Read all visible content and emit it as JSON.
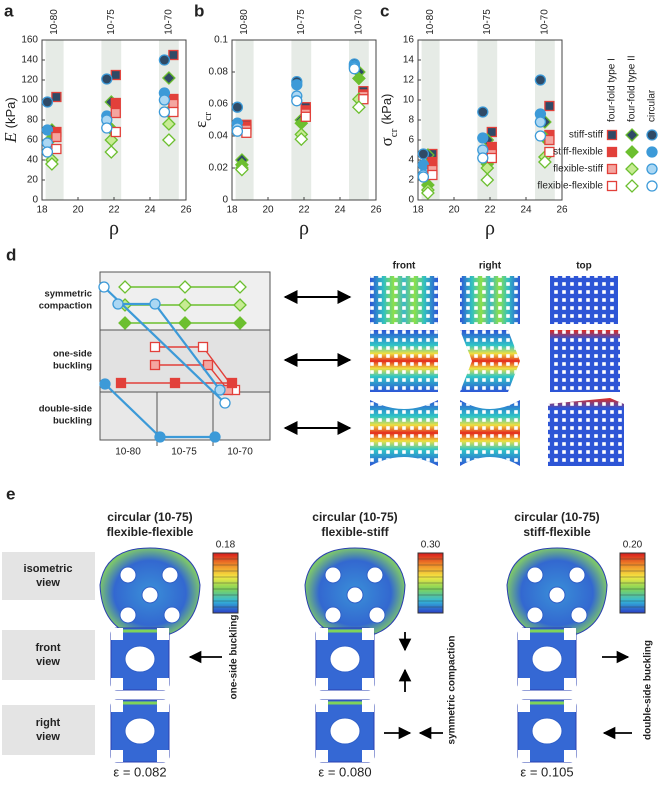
{
  "chart_data": [
    {
      "type": "scatter",
      "label": "a",
      "ylabel": "E",
      "ylabel_unit": "(kPa)",
      "xlabel": "ρ",
      "xlim": [
        18,
        26
      ],
      "xticks": [
        18,
        20,
        22,
        24,
        26
      ],
      "ylim": [
        0,
        160
      ],
      "yticks": [
        0,
        20,
        40,
        60,
        80,
        100,
        120,
        140,
        160
      ],
      "bands": [
        {
          "label": "10-80",
          "xrange": [
            18.2,
            19.2
          ]
        },
        {
          "label": "10-75",
          "xrange": [
            21.3,
            22.4
          ]
        },
        {
          "label": "10-70",
          "xrange": [
            24.5,
            25.6
          ]
        }
      ],
      "series": [
        {
          "x": [
            18.8,
            22.1,
            25.3
          ],
          "values": [
            103,
            125,
            145
          ]
        },
        {
          "x": [
            18.55,
            21.85,
            25.05
          ],
          "values": [
            70,
            98,
            122
          ]
        },
        {
          "x": [
            18.3,
            21.6,
            24.8
          ],
          "values": [
            98,
            121,
            140
          ]
        },
        {
          "x": [
            18.8,
            22.1,
            25.3
          ],
          "values": [
            68,
            97,
            101
          ]
        },
        {
          "x": [
            18.55,
            21.85,
            25.05
          ],
          "values": [
            62,
            71,
            88
          ]
        },
        {
          "x": [
            18.3,
            21.6,
            24.8
          ],
          "values": [
            70,
            84,
            107
          ]
        },
        {
          "x": [
            18.8,
            22.1,
            25.3
          ],
          "values": [
            63,
            87,
            96
          ]
        },
        {
          "x": [
            18.55,
            21.85,
            25.05
          ],
          "values": [
            40,
            60,
            76
          ]
        },
        {
          "x": [
            18.3,
            21.6,
            24.8
          ],
          "values": [
            57,
            80,
            100
          ]
        },
        {
          "x": [
            18.8,
            22.1,
            25.3
          ],
          "values": [
            51,
            68,
            88
          ]
        },
        {
          "x": [
            18.55,
            21.85,
            25.05
          ],
          "values": [
            36,
            48,
            60
          ]
        },
        {
          "x": [
            18.3,
            21.6,
            24.8
          ],
          "values": [
            48,
            72,
            88
          ]
        }
      ]
    },
    {
      "type": "scatter",
      "label": "b",
      "ylabel": "ε",
      "ylabel_sub": "cr",
      "xlabel": "ρ",
      "xlim": [
        18,
        26
      ],
      "xticks": [
        18,
        20,
        22,
        24,
        26
      ],
      "ylim": [
        0,
        0.1
      ],
      "yticks": [
        0,
        0.02,
        0.04,
        0.06,
        0.08,
        0.1
      ],
      "bands": [
        {
          "label": "10-80",
          "xrange": [
            18.2,
            19.2
          ]
        },
        {
          "label": "10-75",
          "xrange": [
            21.3,
            22.4
          ]
        },
        {
          "label": "10-70",
          "xrange": [
            24.5,
            25.6
          ]
        }
      ],
      "series": [
        {
          "x": [
            18.8,
            22.1,
            25.3
          ],
          "values": [
            0.047,
            0.058,
            0.068
          ]
        },
        {
          "x": [
            18.55,
            21.85,
            25.05
          ],
          "values": [
            0.025,
            0.05,
            0.08
          ]
        },
        {
          "x": [
            18.3,
            21.6,
            24.8
          ],
          "values": [
            0.058,
            0.074,
            0.085
          ]
        },
        {
          "x": [
            18.8,
            22.1,
            25.3
          ],
          "values": [
            0.046,
            0.056,
            0.066
          ]
        },
        {
          "x": [
            18.55,
            21.85,
            25.05
          ],
          "values": [
            0.022,
            0.048,
            0.076
          ]
        },
        {
          "x": [
            18.3,
            21.6,
            24.8
          ],
          "values": [
            0.048,
            0.072,
            0.084
          ]
        },
        {
          "x": [
            18.8,
            22.1,
            25.3
          ],
          "values": [
            0.044,
            0.054,
            0.065
          ]
        },
        {
          "x": [
            18.55,
            21.85,
            25.05
          ],
          "values": [
            0.02,
            0.041,
            0.063
          ]
        },
        {
          "x": [
            18.3,
            21.6,
            24.8
          ],
          "values": [
            0.045,
            0.065,
            0.083
          ]
        },
        {
          "x": [
            18.8,
            22.1,
            25.3
          ],
          "values": [
            0.042,
            0.052,
            0.063
          ]
        },
        {
          "x": [
            18.55,
            21.85,
            25.05
          ],
          "values": [
            0.019,
            0.038,
            0.058
          ]
        },
        {
          "x": [
            18.3,
            21.6,
            24.8
          ],
          "values": [
            0.043,
            0.062,
            0.082
          ]
        }
      ]
    },
    {
      "type": "scatter",
      "label": "c",
      "ylabel": "σ",
      "ylabel_sub": "cr",
      "ylabel_unit": "(kPa)",
      "xlabel": "ρ",
      "xlim": [
        18,
        26
      ],
      "xticks": [
        18,
        20,
        22,
        24,
        26
      ],
      "ylim": [
        0,
        16
      ],
      "yticks": [
        0,
        2,
        4,
        6,
        8,
        10,
        12,
        14,
        16
      ],
      "bands": [
        {
          "label": "10-80",
          "xrange": [
            18.2,
            19.2
          ]
        },
        {
          "label": "10-75",
          "xrange": [
            21.3,
            22.4
          ]
        },
        {
          "label": "10-70",
          "xrange": [
            24.5,
            25.6
          ]
        }
      ],
      "series": [
        {
          "x": [
            18.8,
            22.1,
            25.3
          ],
          "values": [
            4.6,
            6.8,
            9.4
          ]
        },
        {
          "x": [
            18.55,
            21.85,
            25.05
          ],
          "values": [
            4.5,
            6.0,
            7.8
          ]
        },
        {
          "x": [
            18.3,
            21.6,
            24.8
          ],
          "values": [
            4.6,
            8.8,
            12.0
          ]
        },
        {
          "x": [
            18.8,
            22.1,
            25.3
          ],
          "values": [
            3.8,
            5.3,
            6.5
          ]
        },
        {
          "x": [
            18.55,
            21.85,
            25.05
          ],
          "values": [
            1.5,
            3.6,
            6.2
          ]
        },
        {
          "x": [
            18.3,
            21.6,
            24.8
          ],
          "values": [
            3.5,
            6.2,
            8.6
          ]
        },
        {
          "x": [
            18.8,
            22.1,
            25.3
          ],
          "values": [
            3.0,
            4.6,
            6.0
          ]
        },
        {
          "x": [
            18.55,
            21.85,
            25.05
          ],
          "values": [
            1.0,
            3.2,
            4.3
          ]
        },
        {
          "x": [
            18.3,
            21.6,
            24.8
          ],
          "values": [
            2.5,
            5.0,
            7.8
          ]
        },
        {
          "x": [
            18.8,
            22.1,
            25.3
          ],
          "values": [
            2.5,
            4.2,
            4.8
          ]
        },
        {
          "x": [
            18.55,
            21.85,
            25.05
          ],
          "values": [
            0.7,
            2.0,
            3.8
          ]
        },
        {
          "x": [
            18.3,
            21.6,
            24.8
          ],
          "values": [
            2.3,
            4.2,
            6.4
          ]
        }
      ]
    }
  ],
  "legend": {
    "columns": [
      {
        "name": "four-fold type I",
        "marker": "square",
        "color": "#e2403a",
        "light": "#f4a6a0"
      },
      {
        "name": "four-fold type II",
        "marker": "diamond",
        "color": "#6cbf2f",
        "light": "#c7eb93"
      },
      {
        "name": "circular",
        "marker": "circle",
        "color": "#3c9ad8",
        "light": "#abd7f3"
      }
    ],
    "rows": [
      {
        "name": "stiff-stiff",
        "fill": "#2f4a66"
      },
      {
        "name": "stiff-flexible",
        "fill": "color"
      },
      {
        "name": "flexible-stiff",
        "fill": "light"
      },
      {
        "name": "flexible-flexible",
        "fill": "#ffffff"
      }
    ]
  },
  "panel_d": {
    "label": "d",
    "rows": [
      [
        "symmetric",
        "compaction"
      ],
      [
        "one-side",
        "buckling"
      ],
      [
        "double-side",
        "buckling"
      ]
    ],
    "columns": [
      "10-80",
      "10-75",
      "10-70"
    ],
    "views": [
      "front",
      "right",
      "top"
    ]
  },
  "panel_e": {
    "label": "e",
    "views": [
      [
        "isometric",
        "view"
      ],
      [
        "front",
        "view"
      ],
      [
        "right",
        "view"
      ]
    ],
    "columns": [
      {
        "title": [
          "circular (10-75)",
          "flexible-flexible"
        ],
        "scale_max": {
          "value": 0.18,
          "label": "0.18"
        },
        "mode": "one-side buckling",
        "strain": "ε = 0.082"
      },
      {
        "title": [
          "circular (10-75)",
          "flexible-stiff"
        ],
        "scale_max": {
          "value": 0.3,
          "label": "0.30"
        },
        "mode": "symmetric compaction",
        "strain": "ε = 0.080"
      },
      {
        "title": [
          "circular (10-75)",
          "stiff-flexible"
        ],
        "scale_max": {
          "value": 0.2,
          "label": "0.20"
        },
        "mode": "double-side buckling",
        "strain": "ε = 0.105"
      }
    ]
  }
}
